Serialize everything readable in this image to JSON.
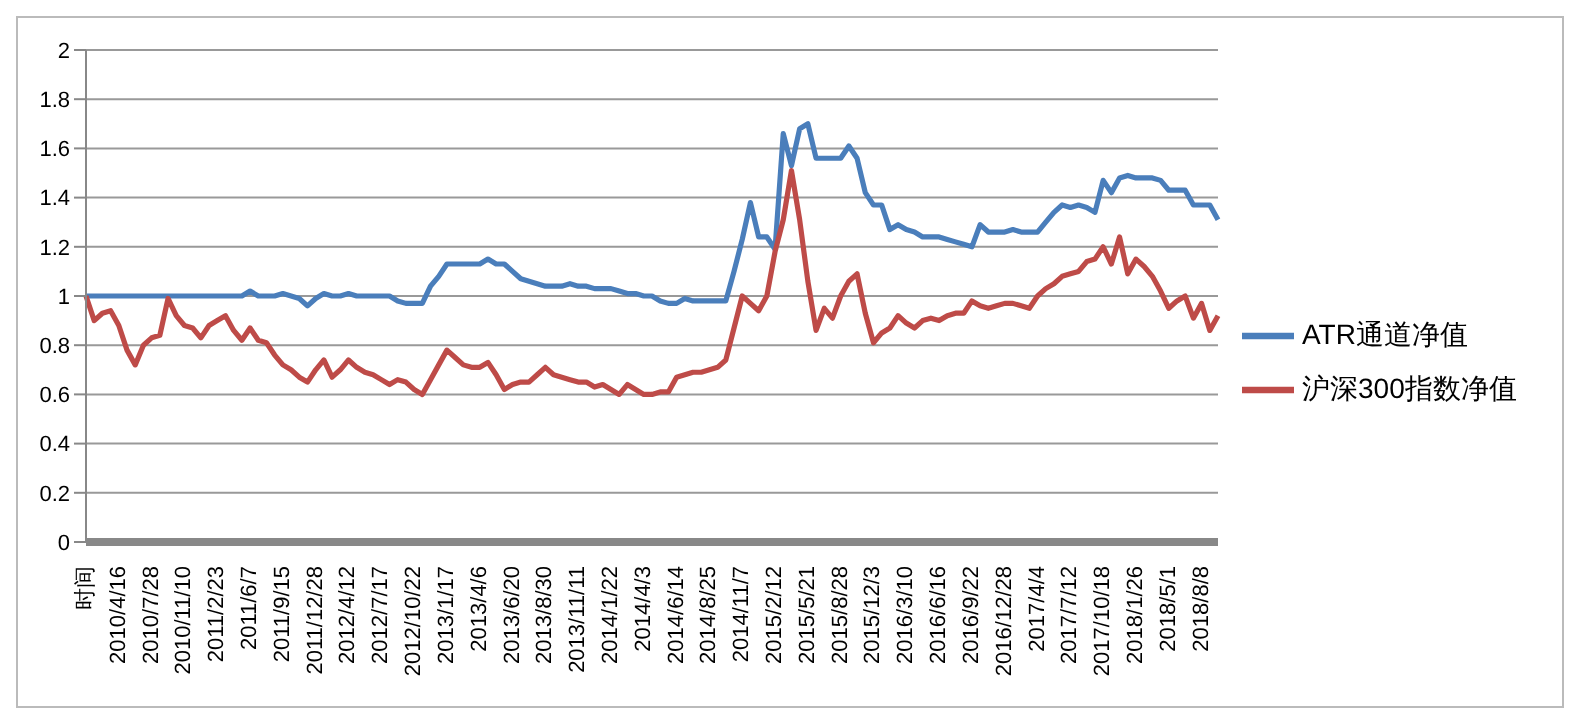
{
  "chart_data": {
    "type": "line",
    "categories": [
      "时间",
      null,
      null,
      null,
      "2010/4/16",
      null,
      null,
      null,
      "2010/7/28",
      null,
      null,
      null,
      "2010/11/10",
      null,
      null,
      null,
      "2011/2/23",
      null,
      null,
      null,
      "2011/6/7",
      null,
      null,
      null,
      "2011/9/15",
      null,
      null,
      null,
      "2011/12/28",
      null,
      null,
      null,
      "2012/4/12",
      null,
      null,
      null,
      "2012/7/17",
      null,
      null,
      null,
      "2012/10/22",
      null,
      null,
      null,
      "2013/1/17",
      null,
      null,
      null,
      "2013/4/6",
      null,
      null,
      null,
      "2013/6/20",
      null,
      null,
      null,
      "2013/8/30",
      null,
      null,
      null,
      "2013/11/11",
      null,
      null,
      null,
      "2014/1/22",
      null,
      null,
      null,
      "2014/4/3",
      null,
      null,
      null,
      "2014/6/14",
      null,
      null,
      null,
      "2014/8/25",
      null,
      null,
      null,
      "2014/11/7",
      null,
      null,
      null,
      "2015/2/12",
      null,
      null,
      null,
      "2015/5/21",
      null,
      null,
      null,
      "2015/8/28",
      null,
      null,
      null,
      "2015/12/3",
      null,
      null,
      null,
      "2016/3/10",
      null,
      null,
      null,
      "2016/6/16",
      null,
      null,
      null,
      "2016/9/22",
      null,
      null,
      null,
      "2016/12/28",
      null,
      null,
      null,
      "2017/4/4",
      null,
      null,
      null,
      "2017/7/12",
      null,
      null,
      null,
      "2017/10/18",
      null,
      null,
      null,
      "2018/1/26",
      null,
      null,
      null,
      "2018/5/1",
      null,
      null,
      null,
      "2018/8/8",
      null,
      null
    ],
    "series": [
      {
        "name": "ATR通道净值",
        "color": "#4a7ebb",
        "values": [
          1.0,
          1.0,
          1.0,
          1.0,
          1.0,
          1.0,
          1.0,
          1.0,
          1.0,
          1.0,
          1.0,
          1.0,
          1.0,
          1.0,
          1.0,
          1.0,
          1.0,
          1.0,
          1.0,
          1.0,
          1.02,
          1.0,
          1.0,
          1.0,
          1.01,
          1.0,
          0.99,
          0.96,
          0.99,
          1.01,
          1.0,
          1.0,
          1.01,
          1.0,
          1.0,
          1.0,
          1.0,
          1.0,
          0.98,
          0.97,
          0.97,
          0.97,
          1.04,
          1.08,
          1.13,
          1.13,
          1.13,
          1.13,
          1.13,
          1.15,
          1.13,
          1.13,
          1.1,
          1.07,
          1.06,
          1.05,
          1.04,
          1.04,
          1.04,
          1.05,
          1.04,
          1.04,
          1.03,
          1.03,
          1.03,
          1.02,
          1.01,
          1.01,
          1.0,
          1.0,
          0.98,
          0.97,
          0.97,
          0.99,
          0.98,
          0.98,
          0.98,
          0.98,
          0.98,
          1.1,
          1.23,
          1.38,
          1.24,
          1.24,
          1.19,
          1.66,
          1.53,
          1.68,
          1.7,
          1.56,
          1.56,
          1.56,
          1.56,
          1.61,
          1.56,
          1.42,
          1.37,
          1.37,
          1.27,
          1.29,
          1.27,
          1.26,
          1.24,
          1.24,
          1.24,
          1.23,
          1.22,
          1.21,
          1.2,
          1.29,
          1.26,
          1.26,
          1.26,
          1.27,
          1.26,
          1.26,
          1.26,
          1.3,
          1.34,
          1.37,
          1.36,
          1.37,
          1.36,
          1.34,
          1.47,
          1.42,
          1.48,
          1.49,
          1.48,
          1.48,
          1.48,
          1.47,
          1.43,
          1.43,
          1.43,
          1.37,
          1.37,
          1.37,
          1.31
        ]
      },
      {
        "name": "沪深300指数净值",
        "color": "#be4b48",
        "values": [
          1.0,
          0.9,
          0.93,
          0.94,
          0.88,
          0.78,
          0.72,
          0.8,
          0.83,
          0.84,
          0.99,
          0.92,
          0.88,
          0.87,
          0.83,
          0.88,
          0.9,
          0.92,
          0.86,
          0.82,
          0.87,
          0.82,
          0.81,
          0.76,
          0.72,
          0.7,
          0.67,
          0.65,
          0.7,
          0.74,
          0.67,
          0.7,
          0.74,
          0.71,
          0.69,
          0.68,
          0.66,
          0.64,
          0.66,
          0.65,
          0.62,
          0.6,
          0.66,
          0.72,
          0.78,
          0.75,
          0.72,
          0.71,
          0.71,
          0.73,
          0.68,
          0.62,
          0.64,
          0.65,
          0.65,
          0.68,
          0.71,
          0.68,
          0.67,
          0.66,
          0.65,
          0.65,
          0.63,
          0.64,
          0.62,
          0.6,
          0.64,
          0.62,
          0.6,
          0.6,
          0.61,
          0.61,
          0.67,
          0.68,
          0.69,
          0.69,
          0.7,
          0.71,
          0.74,
          0.87,
          1.0,
          0.97,
          0.94,
          1.0,
          1.18,
          1.31,
          1.51,
          1.31,
          1.06,
          0.86,
          0.95,
          0.91,
          1.0,
          1.06,
          1.09,
          0.93,
          0.81,
          0.85,
          0.87,
          0.92,
          0.89,
          0.87,
          0.9,
          0.91,
          0.9,
          0.92,
          0.93,
          0.93,
          0.98,
          0.96,
          0.95,
          0.96,
          0.97,
          0.97,
          0.96,
          0.95,
          1.0,
          1.03,
          1.05,
          1.08,
          1.09,
          1.1,
          1.14,
          1.15,
          1.2,
          1.13,
          1.24,
          1.09,
          1.15,
          1.12,
          1.08,
          1.02,
          0.95,
          0.98,
          1.0,
          0.91,
          0.97,
          0.86,
          0.92
        ]
      }
    ],
    "ylim": [
      0,
      2
    ],
    "yticks": [
      0,
      0.2,
      0.4,
      0.6,
      0.8,
      1,
      1.2,
      1.4,
      1.6,
      1.8,
      2
    ],
    "grid": "y",
    "legend": "right",
    "marker": "none",
    "line_style": "solid"
  }
}
